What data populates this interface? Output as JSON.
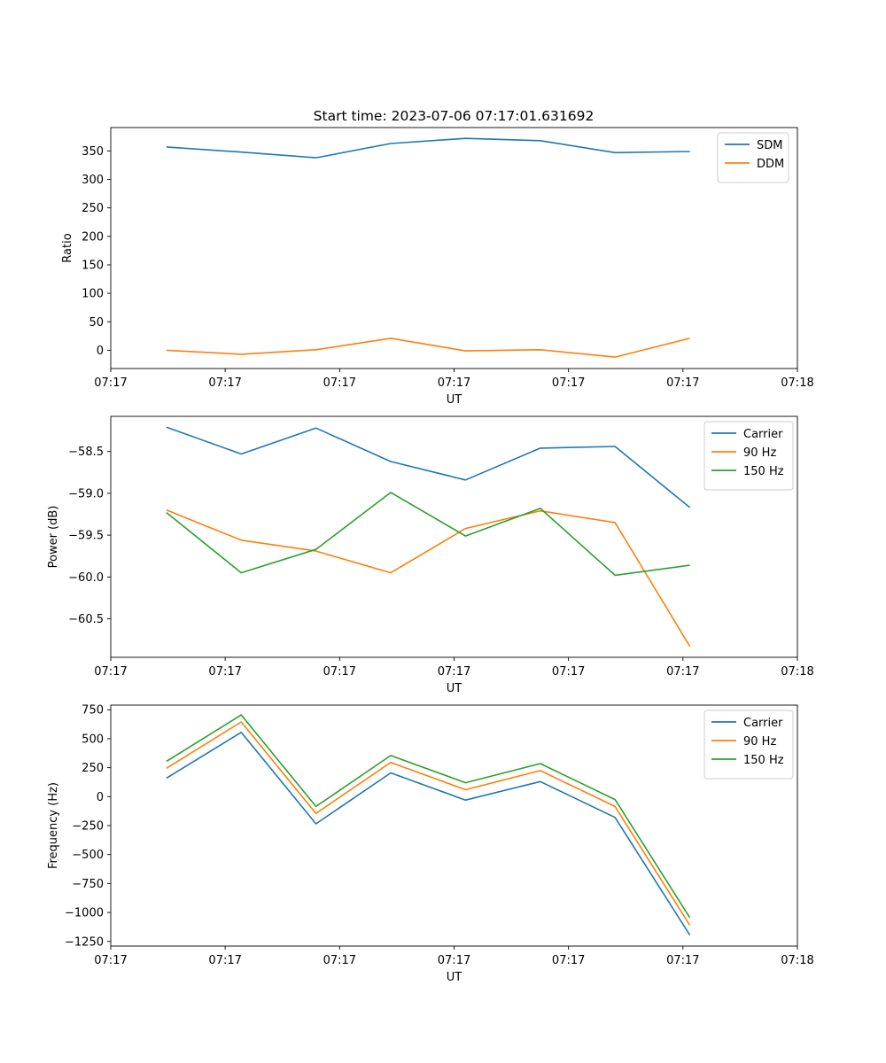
{
  "figure_title": "Start time: 2023-07-06 07:17:01.631692",
  "chart_data": [
    {
      "type": "line",
      "title": "Start time: 2023-07-06 07:17:01.631692",
      "xlabel": "UT",
      "ylabel": "Ratio",
      "xlim": [
        0,
        9
      ],
      "xticks": [
        0,
        1.5,
        3,
        4.5,
        6,
        7.5,
        9
      ],
      "xtick_labels": [
        "07:17",
        "07:17",
        "07:17",
        "07:17",
        "07:17",
        "07:17",
        "07:18"
      ],
      "ylim": [
        -32,
        391
      ],
      "yticks": [
        0,
        50,
        100,
        150,
        200,
        250,
        300,
        350
      ],
      "legend_position": "top-right",
      "x": [
        0.73,
        1.71,
        2.69,
        3.67,
        4.65,
        5.63,
        6.61,
        7.59
      ],
      "series": [
        {
          "name": "SDM",
          "color": "#1f77b4",
          "values": [
            357,
            348,
            338,
            363,
            372,
            368,
            347,
            349
          ]
        },
        {
          "name": "DDM",
          "color": "#ff7f0e",
          "values": [
            0,
            -7,
            1,
            21,
            -1,
            1,
            -12,
            21
          ]
        }
      ]
    },
    {
      "type": "line",
      "title": "",
      "xlabel": "UT",
      "ylabel": "Power (dB)",
      "xlim": [
        0,
        9
      ],
      "xticks": [
        0,
        1.5,
        3,
        4.5,
        6,
        7.5,
        9
      ],
      "xtick_labels": [
        "07:17",
        "07:17",
        "07:17",
        "07:17",
        "07:17",
        "07:17",
        "07:18"
      ],
      "ylim": [
        -60.96,
        -58.08
      ],
      "yticks": [
        -60.5,
        -60.0,
        -59.5,
        -59.0,
        -58.5
      ],
      "ytick_labels": [
        "−60.5",
        "−60.0",
        "−59.5",
        "−59.0",
        "−58.5"
      ],
      "legend_position": "top-right",
      "x": [
        0.73,
        1.71,
        2.69,
        3.67,
        4.65,
        5.63,
        6.61,
        7.59
      ],
      "series": [
        {
          "name": "Carrier",
          "color": "#1f77b4",
          "values": [
            -58.21,
            -58.53,
            -58.22,
            -58.62,
            -58.84,
            -58.46,
            -58.44,
            -59.17
          ]
        },
        {
          "name": "90 Hz",
          "color": "#ff7f0e",
          "values": [
            -59.2,
            -59.56,
            -59.69,
            -59.95,
            -59.42,
            -59.21,
            -59.35,
            -60.83
          ]
        },
        {
          "name": "150 Hz",
          "color": "#2ca02c",
          "values": [
            -59.23,
            -59.95,
            -59.67,
            -58.99,
            -59.51,
            -59.18,
            -59.98,
            -59.86
          ]
        }
      ]
    },
    {
      "type": "line",
      "title": "",
      "xlabel": "UT",
      "ylabel": "Frequency (Hz)",
      "xlim": [
        0,
        9
      ],
      "xticks": [
        0,
        1.5,
        3,
        4.5,
        6,
        7.5,
        9
      ],
      "xtick_labels": [
        "07:17",
        "07:17",
        "07:17",
        "07:17",
        "07:17",
        "07:17",
        "07:18"
      ],
      "ylim": [
        -1290,
        790
      ],
      "yticks": [
        -1250,
        -1000,
        -750,
        -500,
        -250,
        0,
        250,
        500,
        750
      ],
      "ytick_labels": [
        "−1250",
        "−1000",
        "−750",
        "−500",
        "−250",
        "0",
        "250",
        "500",
        "750"
      ],
      "legend_position": "top-right",
      "x": [
        0.73,
        1.71,
        2.69,
        3.67,
        4.65,
        5.63,
        6.61,
        7.59
      ],
      "series": [
        {
          "name": "Carrier",
          "color": "#1f77b4",
          "values": [
            160,
            555,
            -235,
            205,
            -30,
            130,
            -180,
            -1195
          ]
        },
        {
          "name": "90 Hz",
          "color": "#ff7f0e",
          "values": [
            245,
            645,
            -145,
            295,
            60,
            225,
            -85,
            -1110
          ]
        },
        {
          "name": "150 Hz",
          "color": "#2ca02c",
          "values": [
            305,
            705,
            -85,
            355,
            120,
            285,
            -25,
            -1045
          ]
        }
      ]
    }
  ]
}
